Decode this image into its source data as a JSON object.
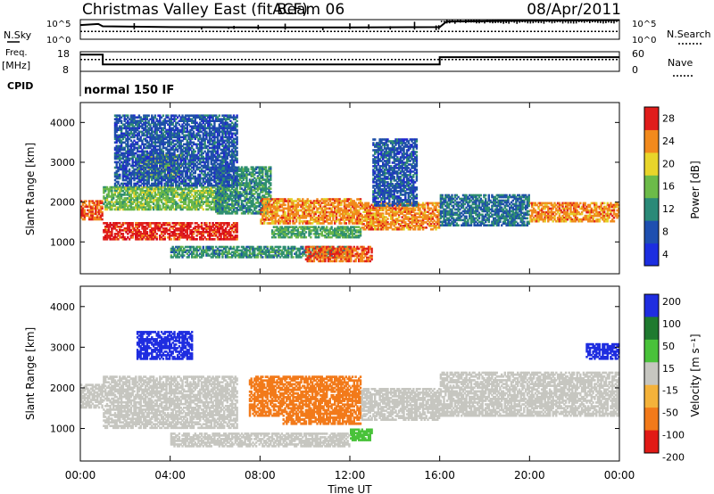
{
  "header": {
    "title": "Christmas Valley East (fitACF)",
    "beam": "Beam 06",
    "date": "08/Apr/2011"
  },
  "chart_data": [
    {
      "type": "line",
      "panel": "noise",
      "left_label": "N.Sky",
      "right_label": "N.Search",
      "left_ticks": [
        "10^5",
        "10^0"
      ],
      "right_ticks": [
        "10^5",
        "10^0"
      ],
      "series": [
        {
          "name": "N.Sky",
          "x": [
            0,
            0.8,
            1.0,
            4,
            8,
            12,
            16,
            16.3,
            20,
            24
          ],
          "level": [
            0.72,
            0.78,
            0.66,
            0.62,
            0.6,
            0.6,
            0.62,
            0.9,
            0.95,
            0.97
          ]
        },
        {
          "name": "N.Search",
          "x": [
            0,
            24
          ],
          "level": [
            0.4,
            0.4
          ]
        }
      ]
    },
    {
      "type": "line",
      "panel": "frequency",
      "left_label": "Freq.",
      "left_unit": "[MHz]",
      "right_label": "Nave",
      "left_ticks": [
        18,
        8
      ],
      "right_ticks": [
        60,
        0
      ],
      "series": [
        {
          "name": "Freq",
          "x": [
            0,
            1,
            1,
            16,
            16,
            24
          ],
          "y": [
            16.5,
            16.5,
            11.5,
            11.5,
            15.2,
            15.2
          ]
        },
        {
          "name": "Nave",
          "x": [
            0,
            24
          ],
          "y": [
            36,
            36
          ]
        }
      ]
    },
    {
      "type": "table",
      "panel": "cpid",
      "label": "CPID",
      "text": "normal 150 IF"
    },
    {
      "type": "heatmap",
      "panel": "power",
      "ylabel": "Slant Range [km]",
      "xlim": [
        0,
        24
      ],
      "ylim": [
        200,
        4500
      ],
      "yticks": [
        1000,
        2000,
        3000,
        4000
      ],
      "colorbar": {
        "label": "Power [dB]",
        "ticks": [
          4,
          8,
          12,
          16,
          20,
          24,
          28
        ]
      },
      "bands": [
        {
          "x0": 0.0,
          "x1": 1.0,
          "r0": 1550,
          "r1": 2050,
          "value": 24
        },
        {
          "x0": 1.0,
          "x1": 7.0,
          "r0": 1050,
          "r1": 1500,
          "value": 26
        },
        {
          "x0": 1.0,
          "x1": 6.5,
          "r0": 1800,
          "r1": 2400,
          "value": 14
        },
        {
          "x0": 2.5,
          "x1": 4.5,
          "r0": 2600,
          "r1": 3200,
          "value": 16
        },
        {
          "x0": 6.0,
          "x1": 8.5,
          "r0": 1700,
          "r1": 2900,
          "value": 10
        },
        {
          "x0": 8.0,
          "x1": 12.5,
          "r0": 1450,
          "r1": 2100,
          "value": 22
        },
        {
          "x0": 8.5,
          "x1": 12.5,
          "r0": 1100,
          "r1": 1400,
          "value": 12
        },
        {
          "x0": 4.0,
          "x1": 12.0,
          "r0": 600,
          "r1": 900,
          "value": 10
        },
        {
          "x0": 10.0,
          "x1": 13.0,
          "r0": 500,
          "r1": 900,
          "value": 24
        },
        {
          "x0": 12.5,
          "x1": 16.0,
          "r0": 1300,
          "r1": 2000,
          "value": 22
        },
        {
          "x0": 13.0,
          "x1": 15.0,
          "r0": 1900,
          "r1": 3600,
          "value": 6
        },
        {
          "x0": 16.0,
          "x1": 20.0,
          "r0": 1400,
          "r1": 2200,
          "value": 8
        },
        {
          "x0": 20.0,
          "x1": 24.0,
          "r0": 1500,
          "r1": 2000,
          "value": 22
        },
        {
          "x0": 1.5,
          "x1": 7.0,
          "r0": 2400,
          "r1": 4200,
          "value": 6
        }
      ]
    },
    {
      "type": "heatmap",
      "panel": "velocity",
      "ylabel": "Slant Range [km]",
      "xlabel": "Time UT",
      "xlim": [
        0,
        24
      ],
      "ylim": [
        200,
        4500
      ],
      "yticks": [
        1000,
        2000,
        3000,
        4000
      ],
      "xticks": [
        "00:00",
        "04:00",
        "08:00",
        "12:00",
        "16:00",
        "20:00",
        "00:00"
      ],
      "colorbar": {
        "label": "Velocity [m s⁻¹]",
        "ticks": [
          200,
          100,
          50,
          15,
          -15,
          -50,
          -100,
          -200
        ]
      },
      "bands": [
        {
          "x0": 0.0,
          "x1": 1.0,
          "r0": 1500,
          "r1": 2100,
          "value": 0
        },
        {
          "x0": 1.0,
          "x1": 7.0,
          "r0": 1000,
          "r1": 2300,
          "value": 0
        },
        {
          "x0": 2.5,
          "x1": 5.0,
          "r0": 2700,
          "r1": 3400,
          "value": 220
        },
        {
          "x0": 7.5,
          "x1": 12.5,
          "r0": 1300,
          "r1": 2300,
          "value": -70
        },
        {
          "x0": 9.0,
          "x1": 12.5,
          "r0": 1100,
          "r1": 1300,
          "value": -60
        },
        {
          "x0": 12.5,
          "x1": 16.0,
          "r0": 1200,
          "r1": 2000,
          "value": 0
        },
        {
          "x0": 12.0,
          "x1": 13.0,
          "r0": 700,
          "r1": 1000,
          "value": 40
        },
        {
          "x0": 4.0,
          "x1": 12.0,
          "r0": 550,
          "r1": 900,
          "value": 0
        },
        {
          "x0": 16.0,
          "x1": 24.0,
          "r0": 1300,
          "r1": 2400,
          "value": 0
        },
        {
          "x0": 22.5,
          "x1": 24.0,
          "r0": 2700,
          "r1": 3100,
          "value": 150
        }
      ]
    }
  ]
}
